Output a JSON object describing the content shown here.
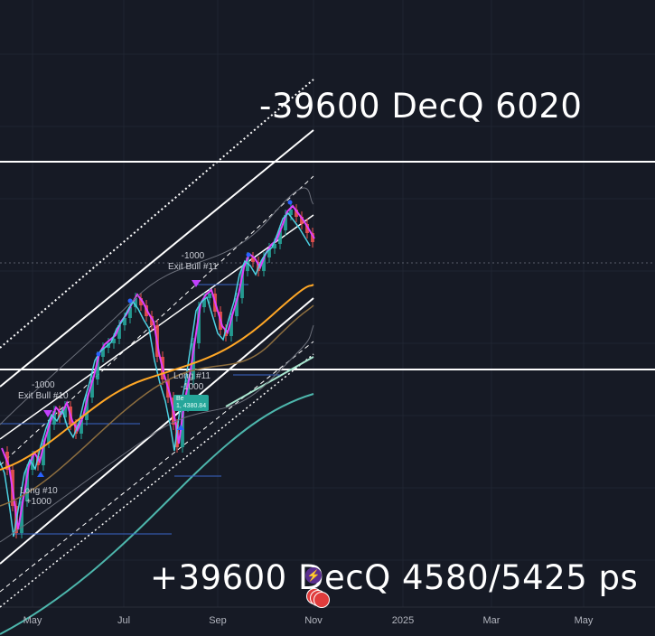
{
  "chart_data": {
    "type": "line",
    "title": "",
    "x_axis_ticks": [
      "May",
      "Jul",
      "Sep",
      "Nov",
      "2025",
      "Mar",
      "May"
    ],
    "annotations": {
      "top": "-39600 DecQ 6020",
      "bottom": "+39600 DecQ 4580/5425 ps"
    },
    "trade_labels": [
      {
        "lines": [
          "-1000",
          "Exit Bull #11"
        ]
      },
      {
        "lines": [
          "-1000",
          "Exit Bull #10"
        ]
      },
      {
        "lines": [
          "Long #11",
          "-1000"
        ]
      },
      {
        "lines": [
          "Long #10",
          "+1000"
        ]
      }
    ],
    "badge": {
      "line1": "Be",
      "line2": "1, 4380.84"
    },
    "horizontal_levels": [
      "6020",
      "4580"
    ],
    "series": [
      {
        "name": "",
        "color": "#ffffff",
        "values": [
          1,
          2,
          3
        ]
      }
    ],
    "colors": {
      "background": "#161a25",
      "channel": "#ffffff",
      "fast_ma": "#e040fb",
      "mid_ma": "#ffa726",
      "slow_ma": "#26a69a",
      "aqua_ma": "#4dd0e1",
      "bull_candle": "#26a69a",
      "bear_candle": "#ef5350",
      "long_ma": "#4db6ac"
    },
    "icons": [
      "bolt-icon",
      "flag-icon"
    ]
  }
}
